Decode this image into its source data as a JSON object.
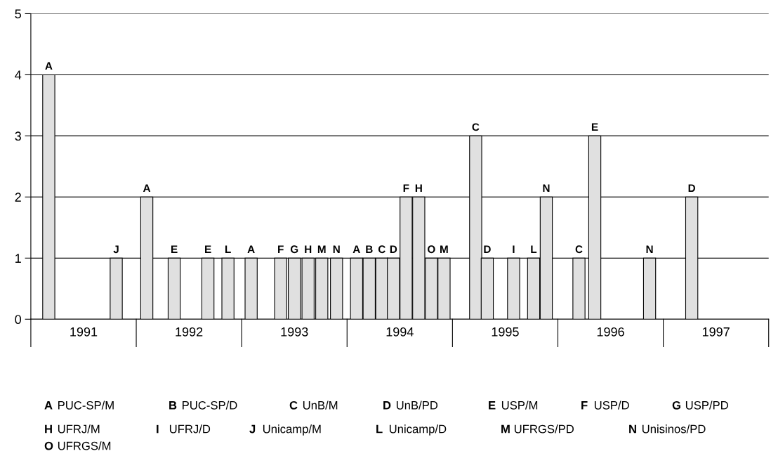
{
  "chart_data": {
    "type": "bar",
    "x": [
      1990.67,
      1991.31,
      1991.6,
      1991.86,
      1992.18,
      1992.37,
      1992.59,
      1992.87,
      1993.0,
      1993.13,
      1993.26,
      1993.4,
      1993.59,
      1993.71,
      1993.83,
      1993.94,
      1994.06,
      1994.18,
      1994.3,
      1994.42,
      1994.72,
      1994.83,
      1995.08,
      1995.27,
      1995.39,
      1995.7,
      1995.85,
      1996.37,
      1996.77
    ],
    "values": [
      4,
      1,
      2,
      1,
      1,
      1,
      1,
      1,
      1,
      1,
      1,
      1,
      1,
      1,
      1,
      1,
      2,
      2,
      1,
      1,
      3,
      1,
      1,
      1,
      2,
      1,
      3,
      1,
      2
    ],
    "value_labels": [
      "A",
      "J",
      "A",
      "E",
      "E",
      "L",
      "A",
      "F",
      "G",
      "H",
      "M",
      "N",
      "A",
      "B",
      "C",
      "D",
      "F",
      "H",
      "O",
      "M",
      "C",
      "D",
      "I",
      "L",
      "N",
      "C",
      "E",
      "N",
      "D"
    ],
    "color": "#e0e0e0",
    "xlim": [
      1990.5,
      1997.5
    ],
    "xticks": [
      1991,
      1992,
      1993,
      1994,
      1995,
      1996,
      1997
    ],
    "ylim": [
      0,
      5
    ],
    "yticks": [
      0,
      1,
      2,
      3,
      4,
      5
    ],
    "grid": "y",
    "annotations": [
      "A PUC-SP/M",
      "B PUC-SP/D",
      "C UnB/M",
      "D UnB/PD",
      "E USP/M",
      "F USP/D",
      "G USP/PD",
      "H UFRJ/M",
      "I UFRJ/D",
      "J Unicamp/M",
      "L Unicamp/D",
      "M UFRGS/PD",
      "N Unisinos/PD",
      "O UFRGS/M"
    ]
  }
}
